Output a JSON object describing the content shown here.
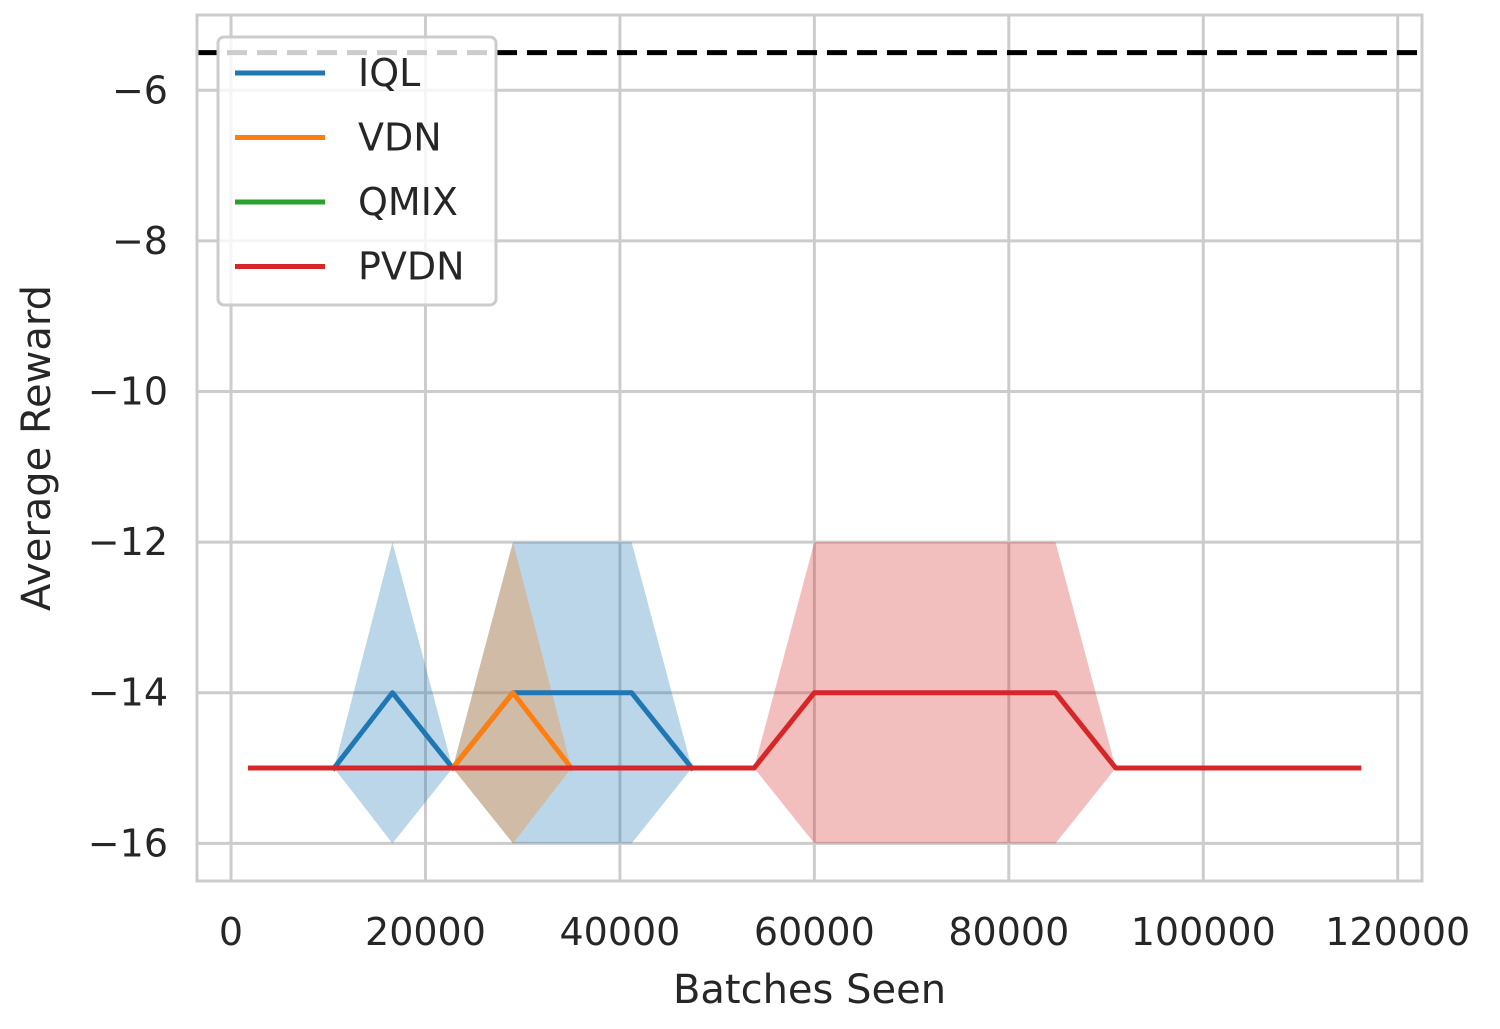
{
  "chart_data": {
    "type": "line",
    "title": "",
    "xlabel": "Batches Seen",
    "ylabel": "Average Reward",
    "xlim": [
      -3500,
      122500
    ],
    "ylim": [
      -16.5,
      -5.0
    ],
    "xticks": [
      0,
      20000,
      40000,
      60000,
      80000,
      100000,
      120000
    ],
    "xtick_labels": [
      "0",
      "20000",
      "40000",
      "60000",
      "80000",
      "100000",
      "120000"
    ],
    "yticks": [
      -6,
      -8,
      -10,
      -12,
      -14,
      -16
    ],
    "ytick_labels": [
      "−6",
      "−8",
      "−10",
      "−12",
      "−14",
      "−16"
    ],
    "grid": true,
    "legend_position": "top-left",
    "reference_line": {
      "y": -5.5,
      "style": "dashed",
      "color": "#000000"
    },
    "series": [
      {
        "name": "IQL",
        "color": "#1f77b4",
        "x": [
          10600,
          16600,
          22800,
          29000,
          35000,
          41200,
          47400
        ],
        "y": [
          -15,
          -14,
          -15,
          -14,
          -14,
          -14,
          -15
        ],
        "band_lower": [
          -15,
          -16,
          -15,
          -16,
          -16,
          -16,
          -15
        ],
        "band_upper": [
          -15,
          -12,
          -15,
          -12,
          -12,
          -12,
          -15
        ]
      },
      {
        "name": "VDN",
        "color": "#ff7f0e",
        "x": [
          22800,
          29000,
          35000
        ],
        "y": [
          -15,
          -14,
          -15
        ],
        "band_lower": [
          -15,
          -16,
          -15
        ],
        "band_upper": [
          -15,
          -12,
          -15
        ]
      },
      {
        "name": "QMIX",
        "color": "#2ca02c",
        "x": [],
        "y": [],
        "band_lower": [],
        "band_upper": []
      },
      {
        "name": "PVDN",
        "color": "#d62728",
        "x": [
          2000,
          8200,
          14400,
          20600,
          26800,
          33000,
          39200,
          45400,
          53800,
          60000,
          66200,
          72400,
          78600,
          84800,
          91000,
          97200,
          103400,
          109600,
          116000
        ],
        "y": [
          -15,
          -15,
          -15,
          -15,
          -15,
          -15,
          -15,
          -15,
          -15,
          -14,
          -14,
          -14,
          -14,
          -14,
          -15,
          -15,
          -15,
          -15,
          -15
        ],
        "band_lower": [
          -15,
          -15,
          -15,
          -15,
          -15,
          -15,
          -15,
          -15,
          -15,
          -16,
          -16,
          -16,
          -16,
          -16,
          -15,
          -15,
          -15,
          -15,
          -15
        ],
        "band_upper": [
          -15,
          -15,
          -15,
          -15,
          -15,
          -15,
          -15,
          -15,
          -15,
          -12,
          -12,
          -12,
          -12,
          -12,
          -15,
          -15,
          -15,
          -15,
          -15
        ]
      }
    ]
  }
}
